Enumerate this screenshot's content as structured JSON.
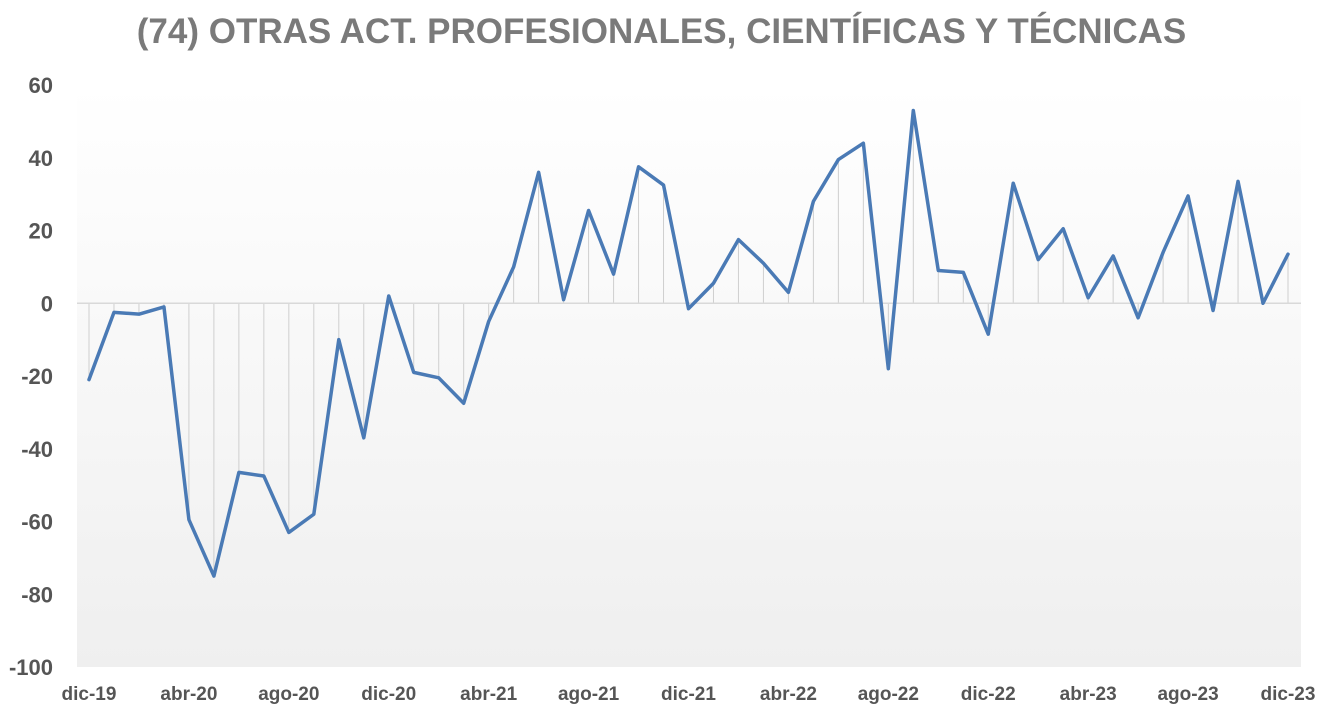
{
  "chart_data": {
    "type": "line",
    "title": "(74) OTRAS ACT. PROFESIONALES, CIENTÍFICAS Y TÉCNICAS",
    "xlabel": "",
    "ylabel": "",
    "ylim": [
      -100,
      60
    ],
    "yticks": [
      60,
      40,
      20,
      0,
      -20,
      -40,
      -60,
      -80,
      -100
    ],
    "x_tick_labels": [
      "dic-19",
      "abr-20",
      "ago-20",
      "dic-20",
      "abr-21",
      "ago-21",
      "dic-21",
      "abr-22",
      "ago-22",
      "dic-22",
      "abr-23",
      "ago-23",
      "dic-23"
    ],
    "x": [
      "dic-19",
      "ene-20",
      "feb-20",
      "mar-20",
      "abr-20",
      "may-20",
      "jun-20",
      "jul-20",
      "ago-20",
      "sep-20",
      "oct-20",
      "nov-20",
      "dic-20",
      "ene-21",
      "feb-21",
      "mar-21",
      "abr-21",
      "may-21",
      "jun-21",
      "jul-21",
      "ago-21",
      "sep-21",
      "oct-21",
      "nov-21",
      "dic-21",
      "ene-22",
      "feb-22",
      "mar-22",
      "abr-22",
      "may-22",
      "jun-22",
      "jul-22",
      "ago-22",
      "sep-22",
      "oct-22",
      "nov-22",
      "dic-22",
      "ene-23",
      "feb-23",
      "mar-23",
      "abr-23",
      "may-23",
      "jun-23",
      "jul-23",
      "ago-23",
      "sep-23",
      "oct-23",
      "nov-23",
      "dic-23"
    ],
    "series": [
      {
        "color": "#4a7ab5",
        "values": [
          -21,
          -2.5,
          -3,
          -1,
          -59.5,
          -75,
          -46.5,
          -47.5,
          -63,
          -58,
          -10,
          -37,
          2,
          -19,
          -20.5,
          -27.5,
          -5,
          10,
          36,
          1,
          25.5,
          8,
          37.5,
          32.5,
          -1.5,
          5.5,
          17.5,
          11,
          3,
          28,
          39.5,
          44,
          -18,
          53,
          9,
          8.5,
          -8.5,
          33,
          12,
          20.5,
          1.5,
          13,
          -4,
          14,
          29.5,
          -2,
          33.5,
          0,
          13.5
        ]
      }
    ],
    "grid": false,
    "drop_lines": true,
    "background_gradient": [
      "#ffffff",
      "#efefef"
    ],
    "zero_line_color": "#d9d9d9"
  }
}
